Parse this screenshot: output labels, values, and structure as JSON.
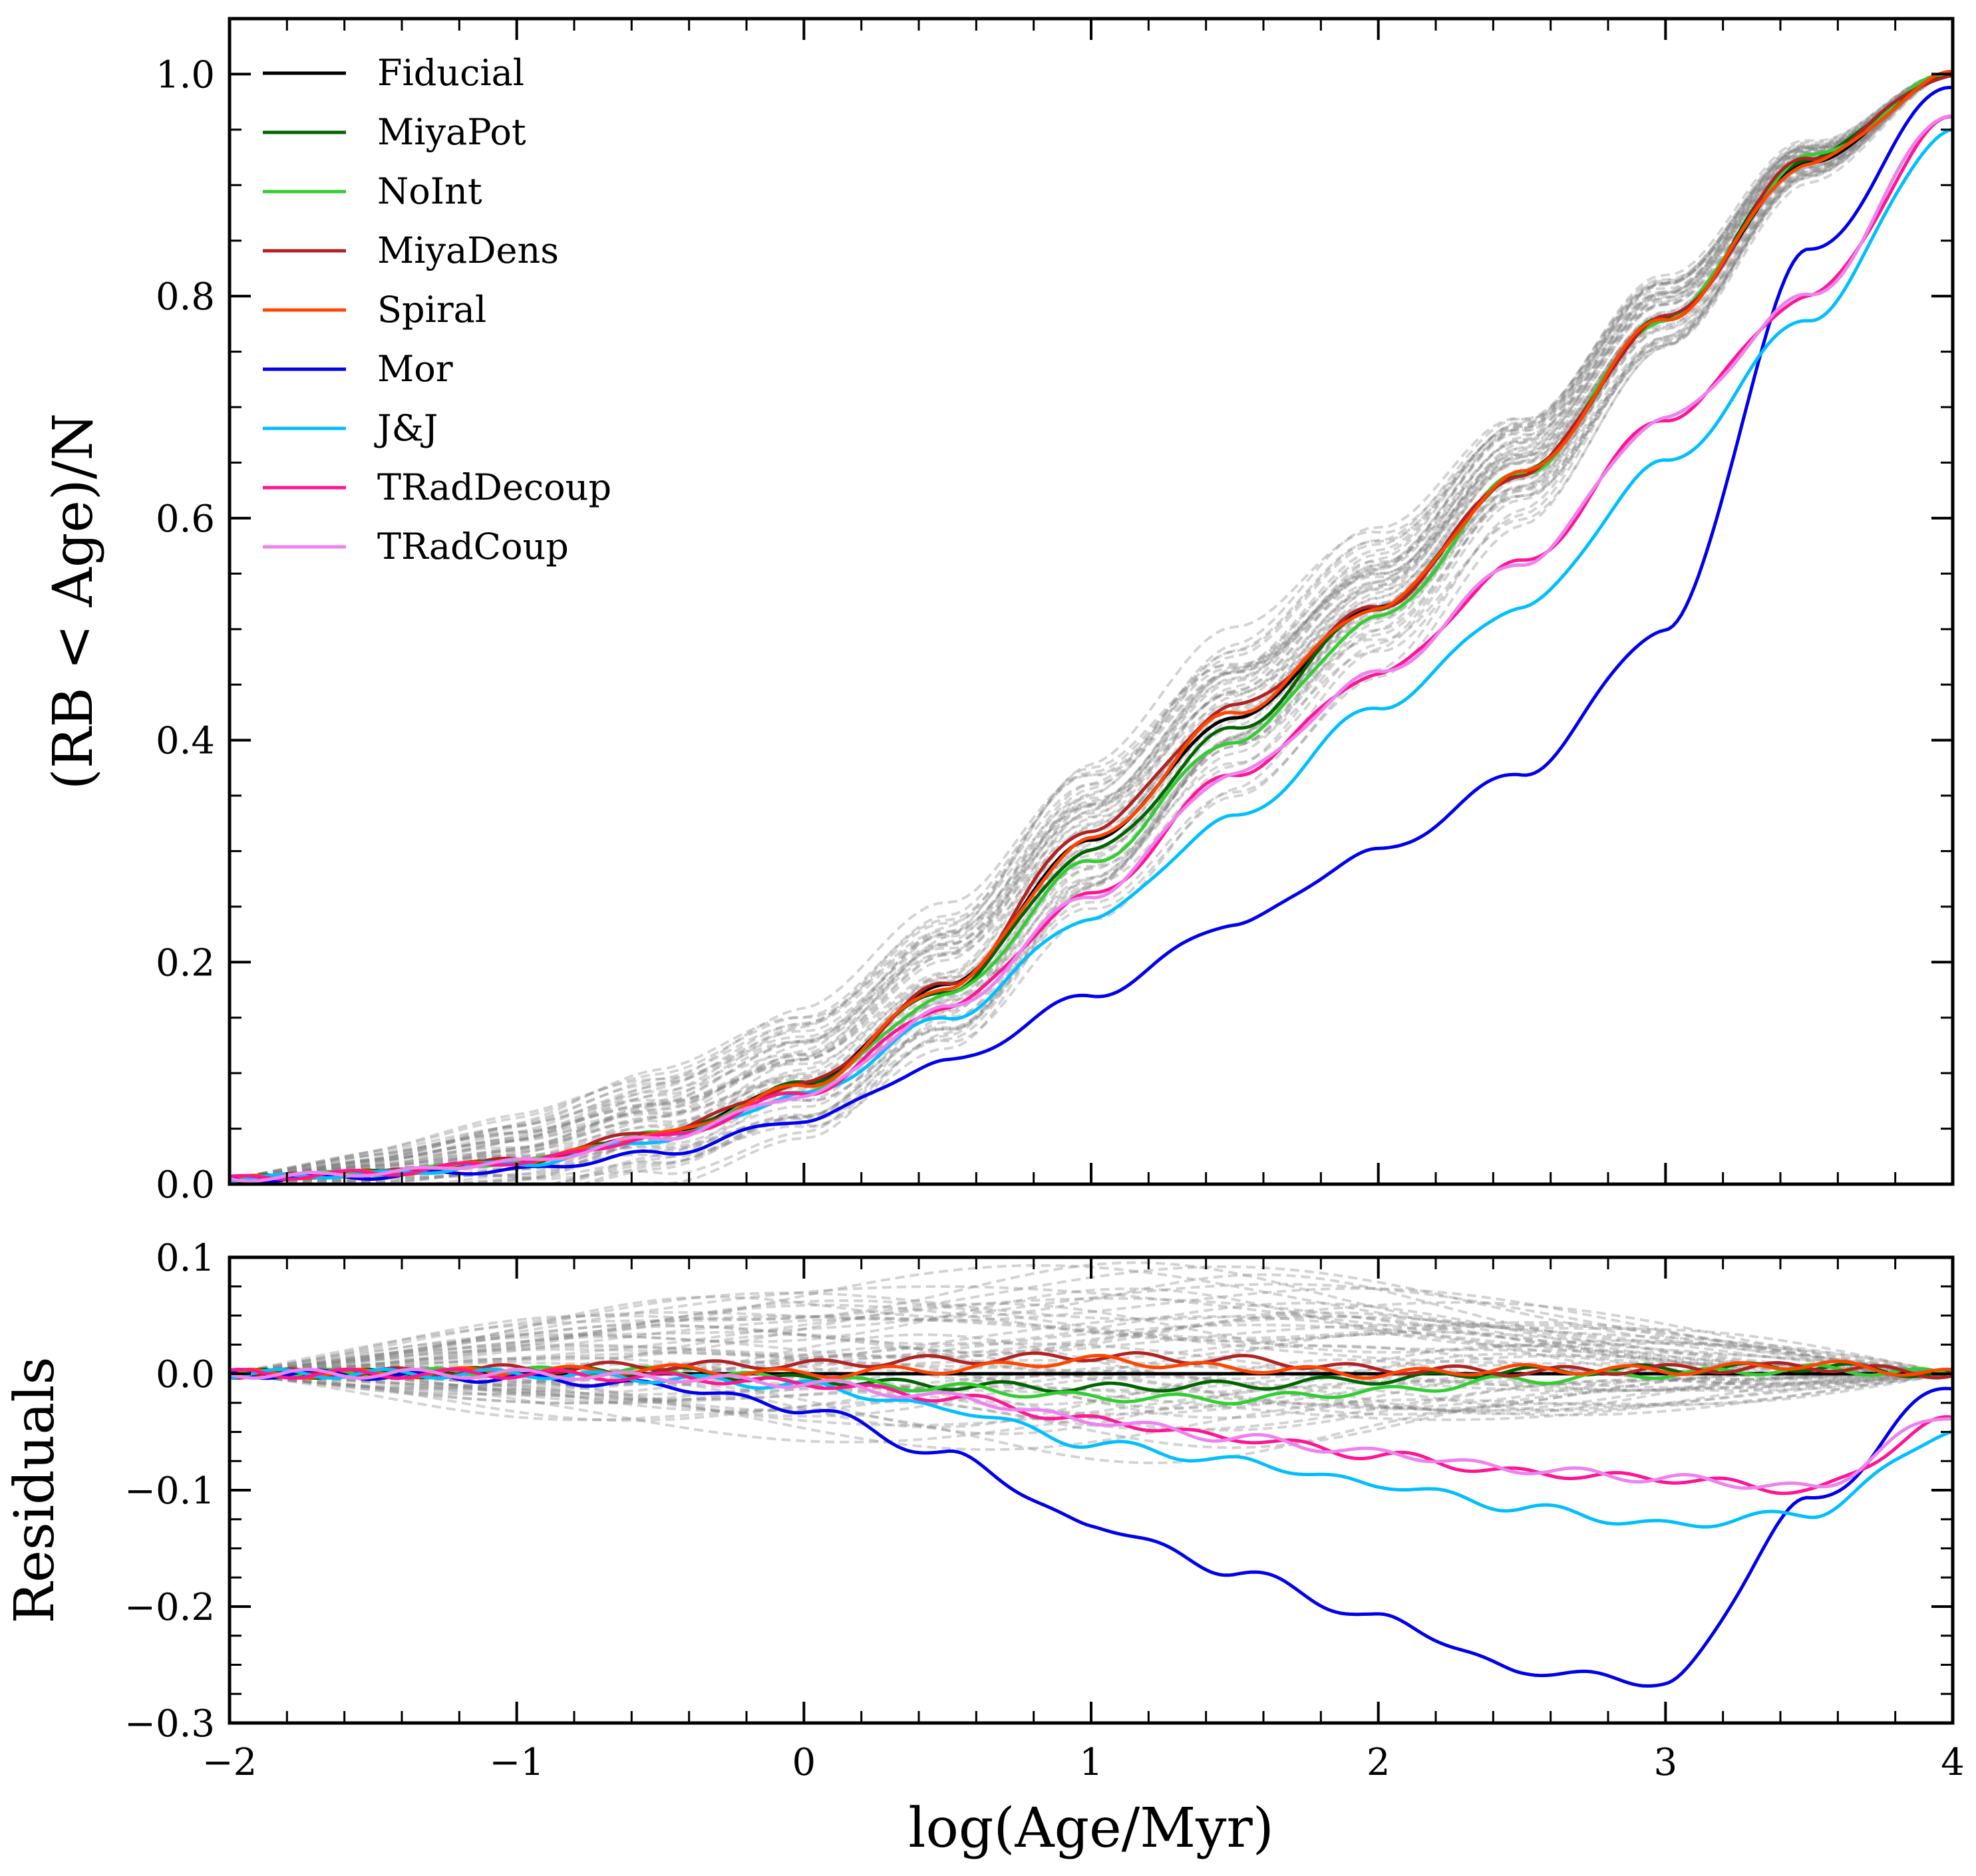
{
  "chart_data": [
    {
      "type": "line",
      "panel": "top",
      "xlabel": "",
      "ylabel": "(RB < Age)/N",
      "xlim": [
        -2,
        4
      ],
      "ylim": [
        0,
        1.05
      ],
      "xticks": [
        -2,
        -1,
        0,
        1,
        2,
        3,
        4
      ],
      "yticks": [
        0.0,
        0.2,
        0.4,
        0.6,
        0.8,
        1.0
      ],
      "ytick_labels": [
        "0.0",
        "0.2",
        "0.4",
        "0.6",
        "0.8",
        "1.0"
      ],
      "x_tick_labels_visible": false,
      "legend_placement": "upper-left",
      "x": [
        -2,
        -1.5,
        -1,
        -0.5,
        0,
        0.5,
        1,
        1.5,
        2,
        2.5,
        3,
        3.5,
        4
      ],
      "series": [
        {
          "name": "Fiducial",
          "color": "#000000",
          "values": [
            0.005,
            0.01,
            0.02,
            0.045,
            0.09,
            0.18,
            0.31,
            0.42,
            0.52,
            0.64,
            0.78,
            0.92,
            1.0
          ]
        },
        {
          "name": "MiyaPot",
          "color": "#006400",
          "values": [
            0.005,
            0.01,
            0.02,
            0.045,
            0.09,
            0.175,
            0.3,
            0.41,
            0.52,
            0.64,
            0.78,
            0.925,
            1.0
          ]
        },
        {
          "name": "NoInt",
          "color": "#32cd32",
          "values": [
            0.005,
            0.01,
            0.02,
            0.045,
            0.085,
            0.17,
            0.29,
            0.4,
            0.51,
            0.64,
            0.78,
            0.925,
            1.0
          ]
        },
        {
          "name": "MiyaDens",
          "color": "#b22222",
          "values": [
            0.005,
            0.01,
            0.021,
            0.048,
            0.09,
            0.18,
            0.32,
            0.43,
            0.52,
            0.64,
            0.78,
            0.925,
            1.0
          ]
        },
        {
          "name": "Spiral",
          "color": "#ff4500",
          "values": [
            0.005,
            0.01,
            0.02,
            0.045,
            0.088,
            0.178,
            0.31,
            0.425,
            0.52,
            0.64,
            0.78,
            0.92,
            1.0
          ]
        },
        {
          "name": "Mor",
          "color": "#0000ee",
          "values": [
            0.004,
            0.007,
            0.013,
            0.028,
            0.058,
            0.11,
            0.17,
            0.235,
            0.3,
            0.37,
            0.5,
            0.84,
            0.99
          ]
        },
        {
          "name": "J&J",
          "color": "#00bfff",
          "values": [
            0.005,
            0.009,
            0.018,
            0.04,
            0.08,
            0.15,
            0.24,
            0.33,
            0.43,
            0.52,
            0.65,
            0.78,
            0.95
          ]
        },
        {
          "name": "TRadDecoup",
          "color": "#ff1493",
          "values": [
            0.005,
            0.01,
            0.02,
            0.042,
            0.082,
            0.16,
            0.26,
            0.37,
            0.46,
            0.56,
            0.69,
            0.8,
            0.96
          ]
        },
        {
          "name": "TRadCoup",
          "color": "#ee82ee",
          "values": [
            0.005,
            0.01,
            0.02,
            0.042,
            0.08,
            0.158,
            0.26,
            0.37,
            0.46,
            0.56,
            0.69,
            0.8,
            0.965
          ]
        }
      ],
      "background_curves": {
        "count": 50,
        "color": "#808080",
        "style": "dashed",
        "opacity": 0.35
      }
    },
    {
      "type": "line",
      "panel": "bottom",
      "xlabel": "log(Age/Myr)",
      "ylabel": "Residuals",
      "xlim": [
        -2,
        4
      ],
      "ylim": [
        -0.3,
        0.1
      ],
      "xticks": [
        -2,
        -1,
        0,
        1,
        2,
        3,
        4
      ],
      "xtick_labels": [
        "−2",
        "−1",
        "0",
        "1",
        "2",
        "3",
        "4"
      ],
      "yticks": [
        -0.3,
        -0.2,
        -0.1,
        0.0,
        0.1
      ],
      "ytick_labels": [
        "−0.3",
        "−0.2",
        "−0.1",
        "0.0",
        "0.1"
      ],
      "x": [
        -2,
        -1.5,
        -1,
        -0.5,
        0,
        0.5,
        1,
        1.5,
        2,
        2.5,
        3,
        3.5,
        4
      ],
      "series": [
        {
          "name": "Fiducial",
          "color": "#000000",
          "values": [
            0,
            0,
            0,
            0,
            0,
            0,
            0,
            0,
            0,
            0,
            0,
            0,
            0
          ]
        },
        {
          "name": "MiyaPot",
          "color": "#006400",
          "values": [
            0,
            0,
            0.002,
            0.002,
            -0.005,
            -0.01,
            -0.012,
            -0.01,
            -0.005,
            0.002,
            0.004,
            0.006,
            0
          ]
        },
        {
          "name": "NoInt",
          "color": "#32cd32",
          "values": [
            0,
            0,
            0.002,
            0.002,
            -0.005,
            -0.012,
            -0.02,
            -0.022,
            -0.015,
            -0.005,
            0,
            0.004,
            0
          ]
        },
        {
          "name": "MiyaDens",
          "color": "#b22222",
          "values": [
            0,
            0.001,
            0.004,
            0.007,
            0.008,
            0.012,
            0.015,
            0.012,
            0.004,
            0.002,
            0.004,
            0.006,
            0
          ]
        },
        {
          "name": "Spiral",
          "color": "#ff4500",
          "values": [
            0,
            0,
            0.002,
            0.004,
            0,
            0.004,
            0.012,
            0.005,
            0,
            0.004,
            0.003,
            0.008,
            0
          ]
        },
        {
          "name": "Mor",
          "color": "#0000ee",
          "values": [
            0,
            -0.001,
            -0.004,
            -0.01,
            -0.03,
            -0.07,
            -0.13,
            -0.17,
            -0.21,
            -0.255,
            -0.265,
            -0.11,
            -0.01
          ]
        },
        {
          "name": "J&J",
          "color": "#00bfff",
          "values": [
            0,
            0,
            0,
            -0.004,
            -0.01,
            -0.03,
            -0.06,
            -0.075,
            -0.095,
            -0.115,
            -0.13,
            -0.12,
            -0.05
          ]
        },
        {
          "name": "TRadDecoup",
          "color": "#ff1493",
          "values": [
            0,
            0,
            0,
            -0.003,
            -0.008,
            -0.02,
            -0.04,
            -0.055,
            -0.07,
            -0.085,
            -0.09,
            -0.1,
            -0.04
          ]
        },
        {
          "name": "TRadCoup",
          "color": "#ee82ee",
          "values": [
            0,
            0,
            0,
            -0.003,
            -0.008,
            -0.02,
            -0.04,
            -0.055,
            -0.068,
            -0.082,
            -0.09,
            -0.098,
            -0.035
          ]
        }
      ],
      "background_curves": {
        "count": 50,
        "color": "#808080",
        "style": "dashed",
        "opacity": 0.35
      }
    }
  ]
}
